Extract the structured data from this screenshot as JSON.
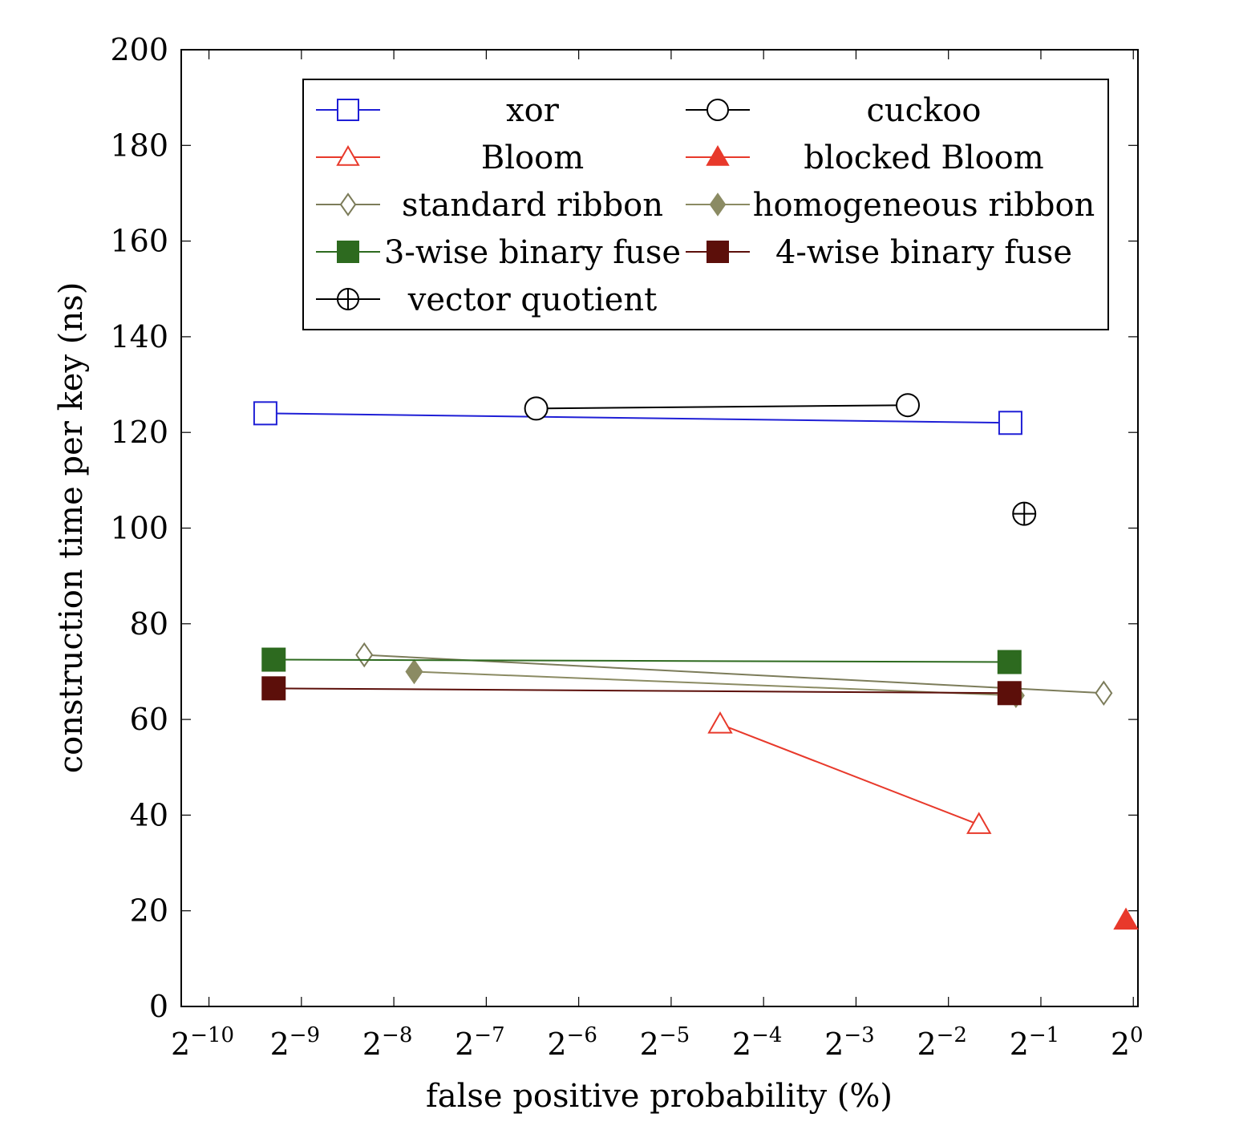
{
  "chart_data": {
    "type": "line",
    "xlabel": "false positive probability (%)",
    "ylabel": "construction time per key (ns)",
    "x_scale": "log2",
    "xlim": [
      -10.3,
      0.05
    ],
    "ylim": [
      0,
      200
    ],
    "xticks": [
      {
        "exp": -10,
        "base": "2",
        "sup": "−10"
      },
      {
        "exp": -9,
        "base": "2",
        "sup": "−9"
      },
      {
        "exp": -8,
        "base": "2",
        "sup": "−8"
      },
      {
        "exp": -7,
        "base": "2",
        "sup": "−7"
      },
      {
        "exp": -6,
        "base": "2",
        "sup": "−6"
      },
      {
        "exp": -5,
        "base": "2",
        "sup": "−5"
      },
      {
        "exp": -4,
        "base": "2",
        "sup": "−4"
      },
      {
        "exp": -3,
        "base": "2",
        "sup": "−3"
      },
      {
        "exp": -2,
        "base": "2",
        "sup": "−2"
      },
      {
        "exp": -1,
        "base": "2",
        "sup": "−1"
      },
      {
        "exp": 0,
        "base": "2",
        "sup": "0"
      }
    ],
    "yticks": [
      "0",
      "20",
      "40",
      "60",
      "80",
      "100",
      "120",
      "140",
      "160",
      "180",
      "200"
    ],
    "ytick_values": [
      0,
      20,
      40,
      60,
      80,
      100,
      120,
      140,
      160,
      180,
      200
    ],
    "legend_position": "top",
    "grid": false,
    "series": [
      {
        "name": "xor",
        "color": "#1f1fd6",
        "marker": "square-open",
        "points": [
          [
            -9.39,
            124
          ],
          [
            -1.33,
            122
          ]
        ]
      },
      {
        "name": "cuckoo",
        "color": "#000000",
        "marker": "circle-open",
        "points": [
          [
            -6.46,
            125
          ],
          [
            -2.44,
            125.7
          ]
        ]
      },
      {
        "name": "Bloom",
        "color": "#e8392b",
        "marker": "triangle-open",
        "points": [
          [
            -4.47,
            59
          ],
          [
            -1.67,
            38
          ]
        ]
      },
      {
        "name": "blocked Bloom",
        "color": "#e8392b",
        "marker": "triangle-filled",
        "points": [
          [
            -0.08,
            18
          ]
        ]
      },
      {
        "name": "standard ribbon",
        "color": "#7c7c5a",
        "marker": "diamond-open",
        "points": [
          [
            -8.32,
            73.5
          ],
          [
            -0.32,
            65.5
          ]
        ]
      },
      {
        "name": "homogeneous ribbon",
        "color": "#8b8b63",
        "marker": "diamond-filled",
        "points": [
          [
            -7.78,
            70
          ],
          [
            -1.27,
            65
          ]
        ]
      },
      {
        "name": "3-wise binary fuse",
        "color": "#2d6a1f",
        "marker": "square-filled",
        "points": [
          [
            -9.3,
            72.5
          ],
          [
            -1.34,
            72
          ]
        ]
      },
      {
        "name": "4-wise binary fuse",
        "color": "#5c0f0a",
        "marker": "square-filled",
        "points": [
          [
            -9.3,
            66.5
          ],
          [
            -1.34,
            65.5
          ]
        ]
      },
      {
        "name": "vector quotient",
        "color": "#000000",
        "marker": "circle-plus",
        "points": [
          [
            -1.18,
            103
          ]
        ]
      }
    ]
  }
}
